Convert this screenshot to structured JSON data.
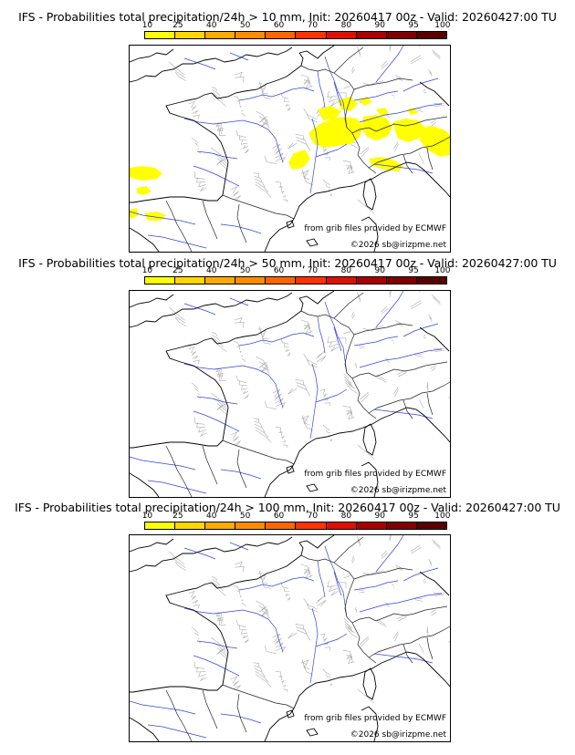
{
  "legend": {
    "colors": [
      "#ffff00",
      "#ffd700",
      "#ffaa00",
      "#ff8c00",
      "#ff6600",
      "#ff3300",
      "#dd1100",
      "#aa0000",
      "#800000",
      "#5a0000"
    ],
    "ticks": [
      "10",
      "25",
      "40",
      "50",
      "60",
      "70",
      "80",
      "90",
      "95",
      "100"
    ]
  },
  "credits": {
    "source": "from grib files provided by ECMWF",
    "copyright": "©2026 sb@irizpme.net"
  },
  "panels": [
    {
      "title": "IFS - Probabilities total precipitation/24h > 10 mm, Init: 20260417 00z - Valid: 20260427:00 TU",
      "threshold": "10 mm",
      "has_precip": true
    },
    {
      "title": "IFS - Probabilities total precipitation/24h > 50 mm, Init: 20260417 00z - Valid: 20260427:00 TU",
      "threshold": "50 mm",
      "has_precip": false
    },
    {
      "title": "IFS - Probabilities total precipitation/24h > 100 mm, Init: 20260417 00z - Valid: 20260427:00 TU",
      "threshold": "100 mm",
      "has_precip": false
    }
  ]
}
